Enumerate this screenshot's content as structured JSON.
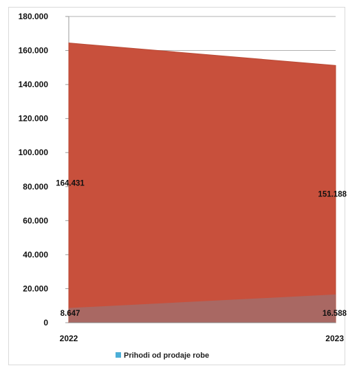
{
  "chart_data": {
    "type": "area",
    "categories": [
      "2022",
      "2023"
    ],
    "ylim": [
      0,
      180000
    ],
    "y_ticks": [
      "0",
      "20.000",
      "40.000",
      "60.000",
      "80.000",
      "100.000",
      "120.000",
      "140.000",
      "160.000",
      "180.000"
    ],
    "grid": true,
    "legend_placement": "bottom",
    "series": [
      {
        "name": "Prihodi od prodaje robe",
        "values": [
          8647,
          16588
        ],
        "labels": [
          "8.647",
          "16.588"
        ],
        "color": "#4baed7"
      },
      {
        "values": [
          164431,
          151188
        ],
        "labels": [
          "164.431",
          "151.188"
        ],
        "color": "#c8503c"
      }
    ]
  }
}
